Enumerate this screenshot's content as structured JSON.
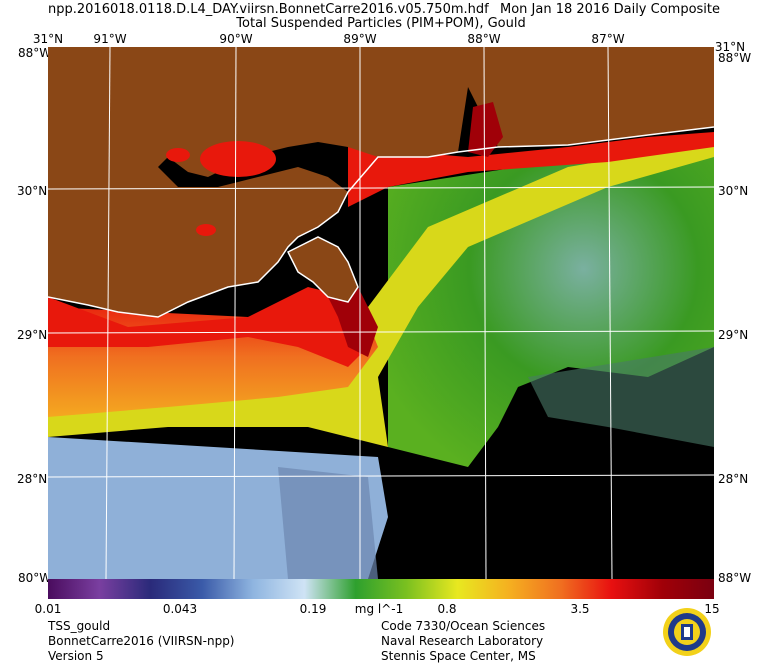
{
  "header": {
    "filename": "npp.2016018.0118.D.L4_DAY.viirsn.BonnetCarre2016.v05.750m.hdf",
    "date": "Mon Jan 18 2016 Daily Composite",
    "product": "Total Suspended Particles (PIM+POM), Gould"
  },
  "axes": {
    "lon_top": [
      "91°W",
      "90°W",
      "89°W",
      "88°W",
      "87°W"
    ],
    "lat_left": [
      "31°N",
      "30°N",
      "29°N",
      "28°N"
    ],
    "lat_right": [
      "31°N",
      "30°N",
      "29°N",
      "28°N"
    ],
    "corner_top_left": "88°W",
    "corner_top_right": "88°W",
    "corner_bottom_left": "80°W",
    "corner_bottom_right": "88°W"
  },
  "colorbar": {
    "ticks": [
      "0.01",
      "0.043",
      "0.19",
      "mg l^-1",
      "0.8",
      "3.5",
      "15"
    ],
    "colors": [
      "#4a0c5e",
      "#7a3fa0",
      "#2a2a7a",
      "#3a5aa8",
      "#8fb5e0",
      "#cfe3f5",
      "#2ea02e",
      "#7ac020",
      "#e8e820",
      "#f5b020",
      "#f07020",
      "#e81010",
      "#a00008",
      "#7a0010"
    ]
  },
  "footer": {
    "left": [
      "TSS_gould",
      "BonnetCarre2016 (VIIRSN-npp)",
      "Version 5"
    ],
    "right": [
      "Code 7330/Ocean Sciences",
      "Naval Research Laboratory",
      "Stennis Space Center, MS"
    ]
  },
  "map_colors": {
    "land": "#8a4716",
    "deep_water": "#000000",
    "clear_water": "#8fb0d8",
    "green_water": "#3a9a22",
    "yellow_water": "#d8d81a",
    "orange_water": "#f4a020",
    "red_water": "#e8180c",
    "coastline": "#ffffff",
    "grid": "#ffffff"
  }
}
